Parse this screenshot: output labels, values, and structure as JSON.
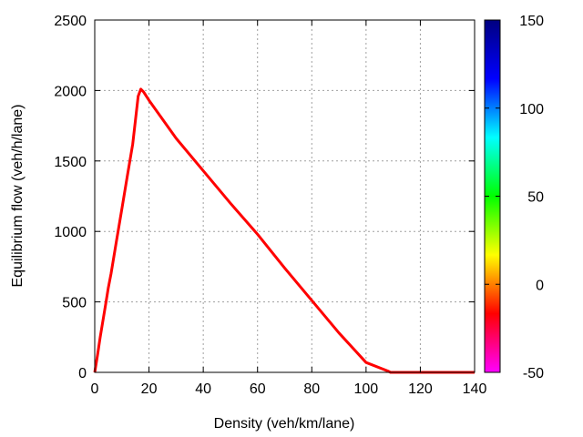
{
  "chart_data": {
    "type": "line",
    "xlabel": "Density (veh/km/lane)",
    "ylabel": "Equilibrium flow (veh/h/lane)",
    "xlim": [
      0,
      140
    ],
    "ylim": [
      0,
      2500
    ],
    "xticks": [
      "0",
      "20",
      "40",
      "60",
      "80",
      "100",
      "120",
      "140"
    ],
    "yticks": [
      "0",
      "500",
      "1000",
      "1500",
      "2000",
      "2500"
    ],
    "grid": true,
    "series": [
      {
        "color": "#ff0000",
        "x": [
          0,
          1,
          2,
          4,
          5,
          6,
          8,
          10,
          12,
          14,
          16,
          17,
          18,
          20,
          30,
          40,
          50,
          60,
          70,
          80,
          90,
          100,
          108,
          109,
          110,
          120,
          130,
          140
        ],
        "y": [
          0,
          120,
          250,
          480,
          600,
          700,
          930,
          1160,
          1390,
          1620,
          1960,
          2010,
          1990,
          1930,
          1660,
          1430,
          1200,
          980,
          740,
          510,
          280,
          70,
          10,
          0,
          0,
          0,
          0,
          0
        ]
      }
    ],
    "colorbar": {
      "range": [
        -50,
        150
      ],
      "ticks": [
        "-50",
        "0",
        "50",
        "100",
        "150"
      ],
      "palette": [
        "#ff00ff",
        "#ff0000",
        "#ffff00",
        "#00ff00",
        "#00ffff",
        "#0000ff",
        "#000080"
      ]
    }
  }
}
